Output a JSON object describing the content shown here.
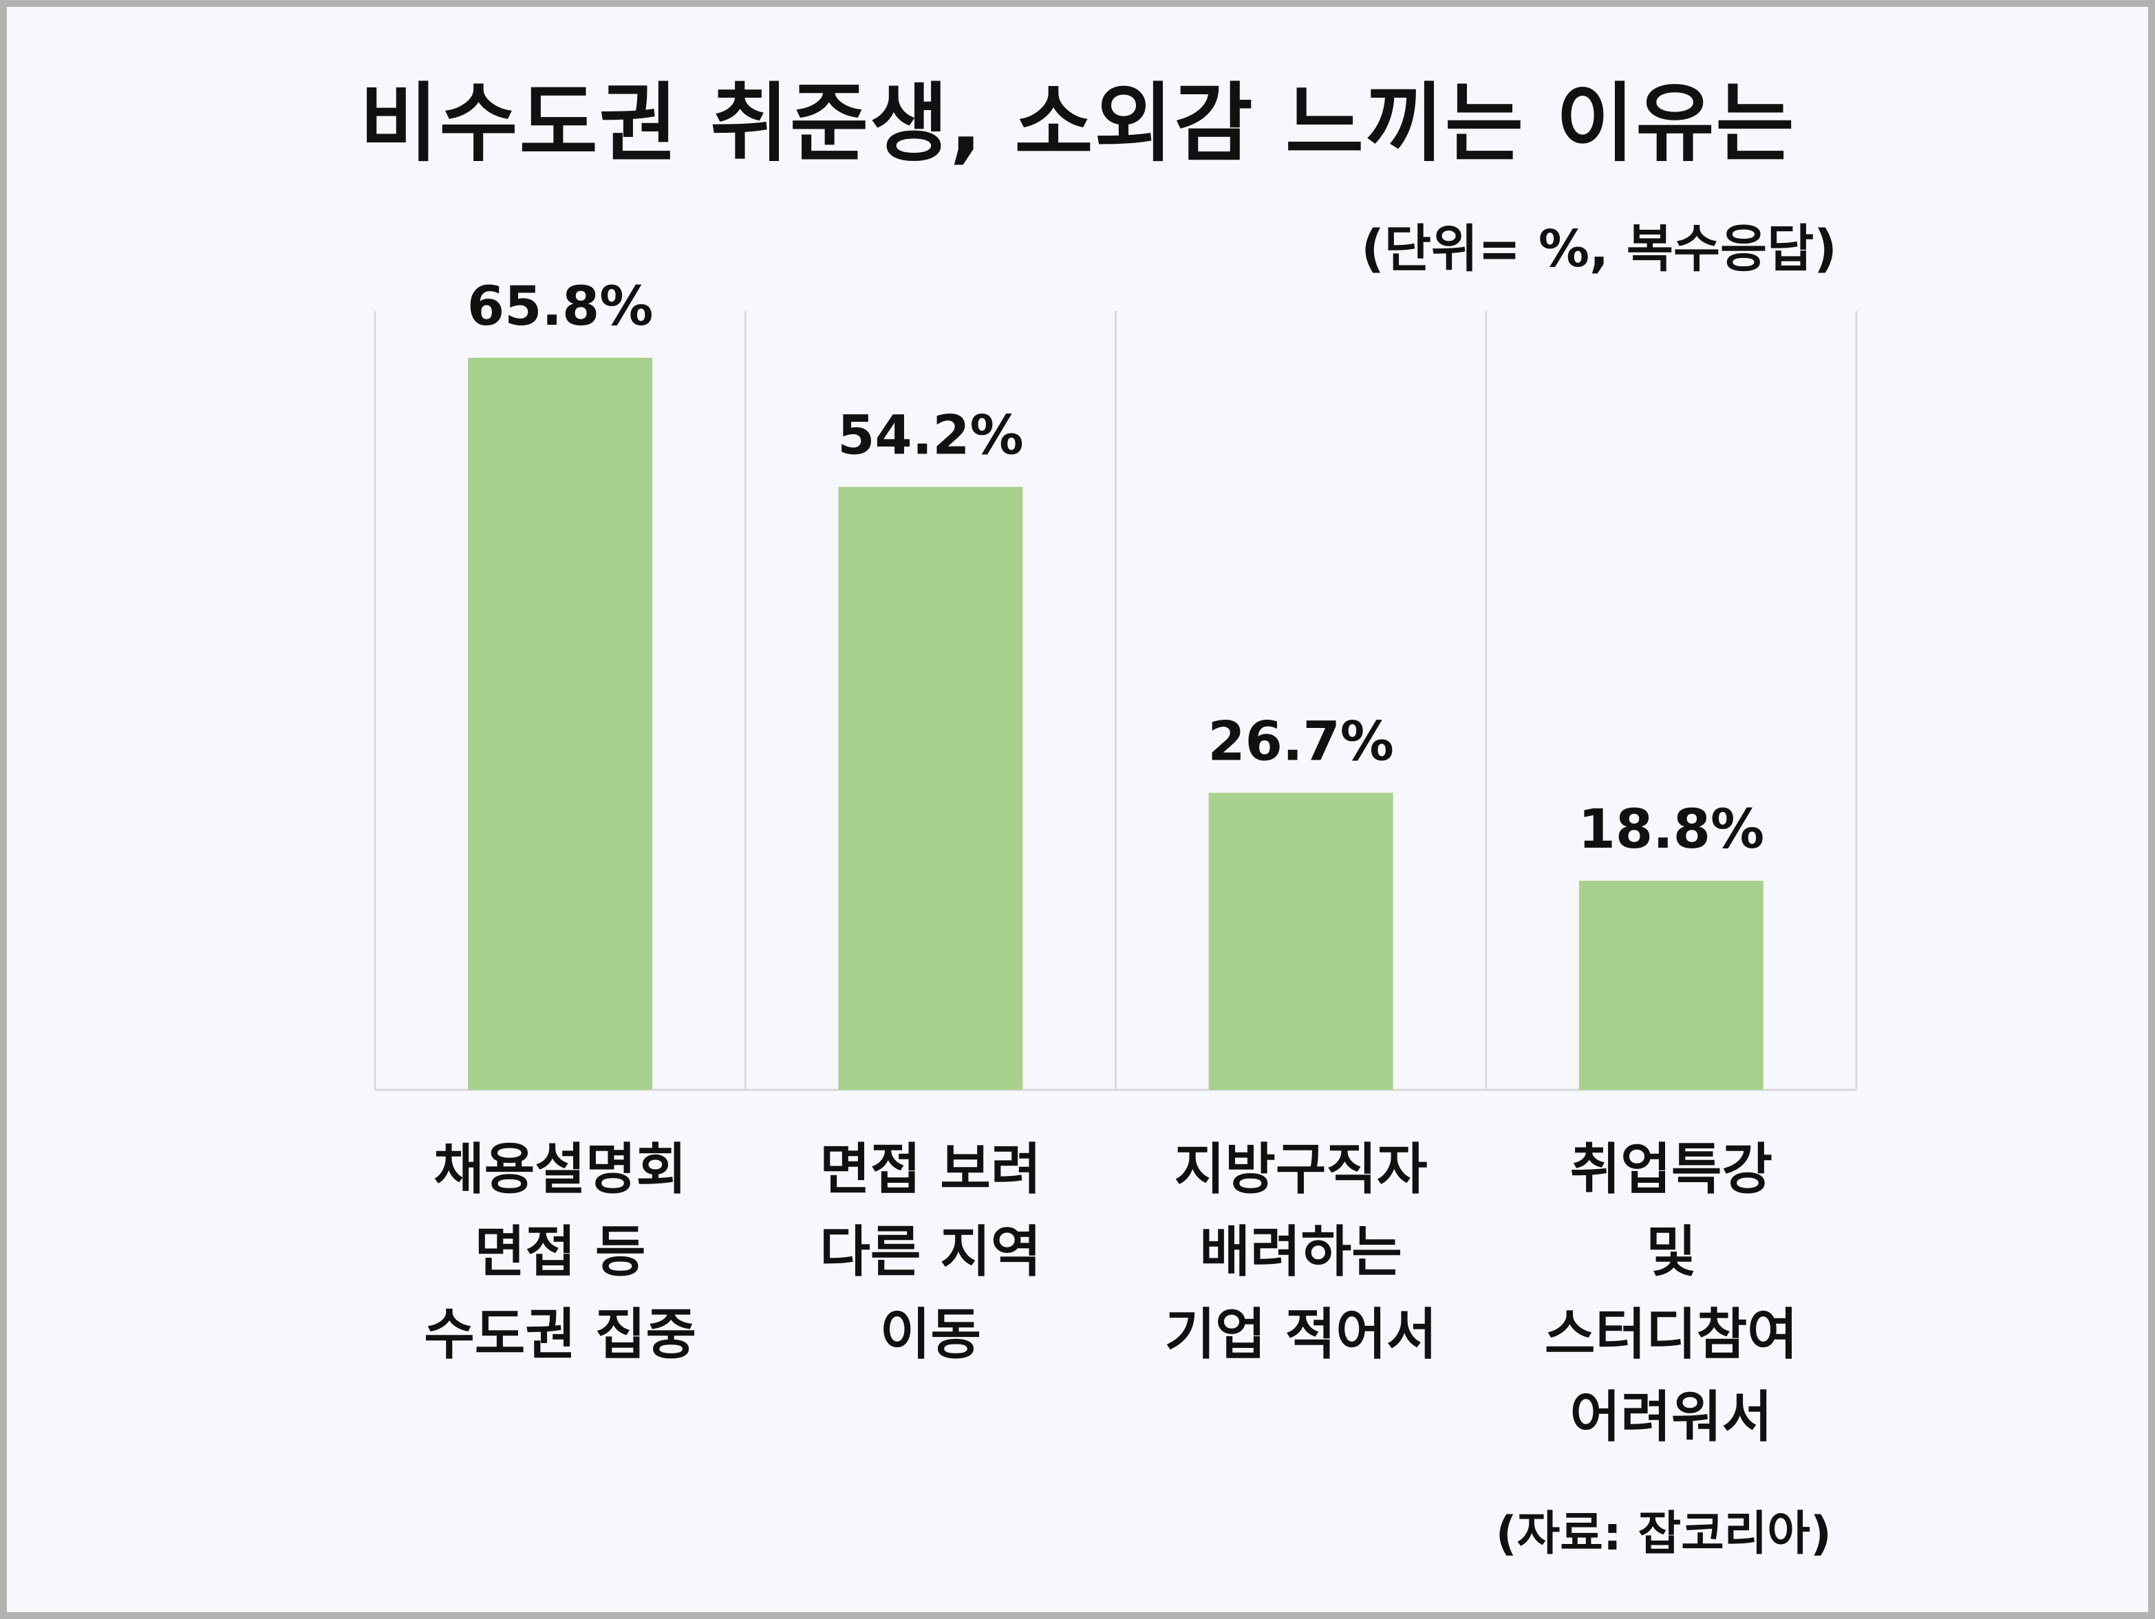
{
  "title": "비수도권 취준생, 소외감 느끼는 이유는",
  "unit_note": "(단위= %, 복수응답)",
  "source": "(자료: 잡코리아)",
  "colors": {
    "bar": "#a9d18e",
    "background": "#f7f8fd",
    "border": "#b2b2b2",
    "grid": "#d9d9d9"
  },
  "chart_data": {
    "type": "bar",
    "categories": [
      "채용설명회\n면접 등\n수도권 집중",
      "면접 보려\n다른 지역\n이동",
      "지방구직자\n배려하는\n기업 적어서",
      "취업특강\n및\n스터디참여\n어려워서"
    ],
    "values": [
      65.8,
      54.2,
      26.7,
      18.8
    ],
    "value_labels": [
      "65.8%",
      "54.2%",
      "26.7%",
      "18.8%"
    ],
    "ylim": [
      0,
      65.8
    ],
    "grid": "vertical category separators",
    "legend": "none"
  }
}
